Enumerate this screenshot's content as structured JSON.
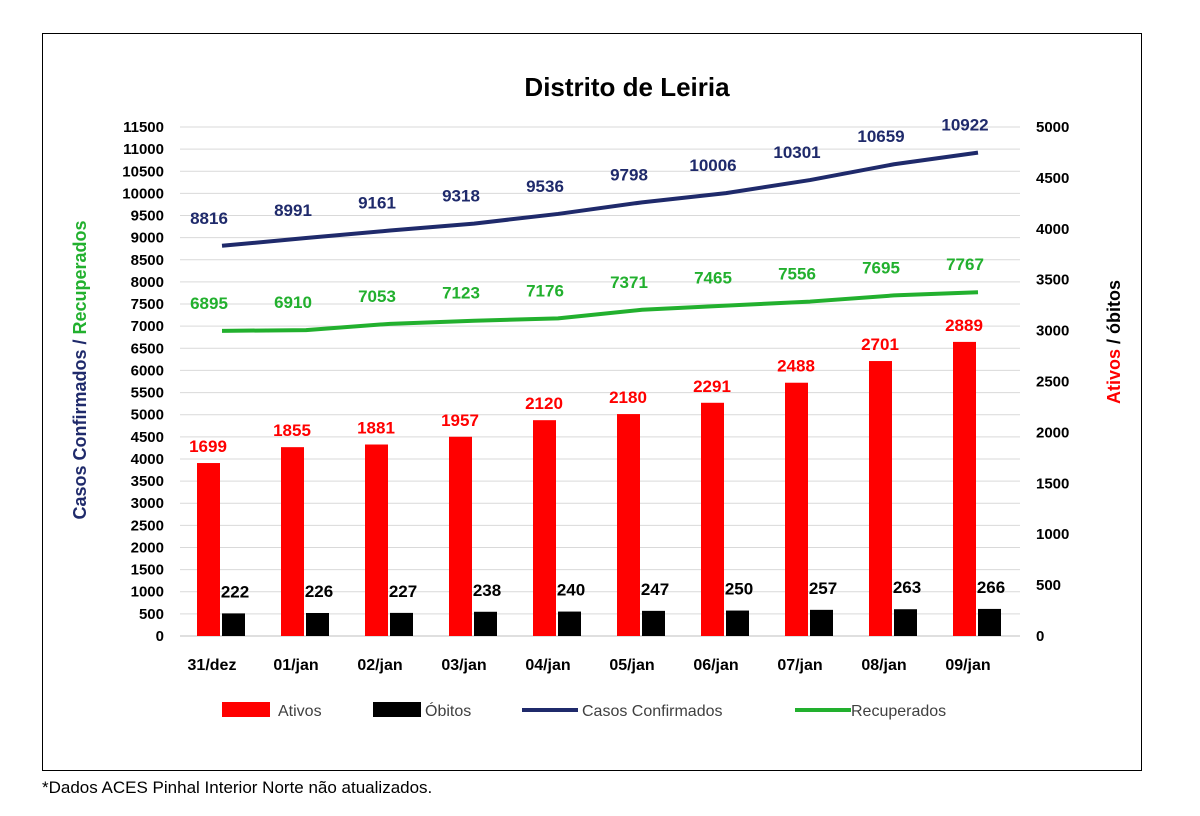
{
  "chart_data": {
    "type": "bar",
    "title": "Distrito de Leiria",
    "categories": [
      "31/dez",
      "01/jan",
      "02/jan",
      "03/jan",
      "04/jan",
      "05/jan",
      "06/jan",
      "07/jan",
      "08/jan",
      "09/jan"
    ],
    "left_axis": {
      "title_part1": "Casos Confirmados",
      "title_sep": " / ",
      "title_part2": "Recuperados",
      "range": [
        0,
        11500
      ],
      "step": 500
    },
    "right_axis": {
      "title_part1": "Ativos",
      "title_sep": " / ",
      "title_part2": "óbitos",
      "range": [
        0,
        5000
      ],
      "step": 500
    },
    "series": [
      {
        "name": "Ativos",
        "kind": "bar",
        "axis": "right",
        "color": "#ff0000",
        "label_color": "#ff0000",
        "values": [
          1699,
          1855,
          1881,
          1957,
          2120,
          2180,
          2291,
          2488,
          2701,
          2889
        ]
      },
      {
        "name": "Óbitos",
        "kind": "bar",
        "axis": "right",
        "color": "#000000",
        "label_color": "#000000",
        "values": [
          222,
          226,
          227,
          238,
          240,
          247,
          250,
          257,
          263,
          266
        ]
      },
      {
        "name": "Casos Confirmados",
        "kind": "line",
        "axis": "left",
        "color": "#1f2a6b",
        "label_color": "#1f2a6b",
        "values": [
          8816,
          8991,
          9161,
          9318,
          9536,
          9798,
          10006,
          10301,
          10659,
          10922
        ]
      },
      {
        "name": "Recuperados",
        "kind": "line",
        "axis": "left",
        "color": "#22b02e",
        "label_color": "#22b02e",
        "values": [
          6895,
          6910,
          7053,
          7123,
          7176,
          7371,
          7465,
          7556,
          7695,
          7767
        ]
      }
    ],
    "grid": true,
    "legend_position": "bottom"
  },
  "footnote": "*Dados ACES Pinhal Interior Norte não atualizados."
}
